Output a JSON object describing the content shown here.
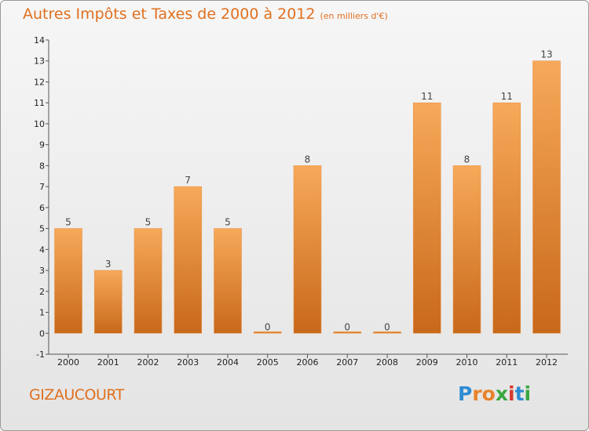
{
  "title": "Autres Impôts et Taxes de 2000 à 2012",
  "subtitle": "(en milliers d'€)",
  "commune": "GIZAUCOURT",
  "logo": {
    "text": "Proxiti",
    "letters": [
      "P",
      "r",
      "o",
      "x",
      "i",
      "t",
      "i"
    ],
    "colors": [
      "#2e8bd2",
      "#e8832a",
      "#e8832a",
      "#3aa640",
      "#d63a2a",
      "#2e8bd2",
      "#3aa640"
    ]
  },
  "chart_data": {
    "type": "bar",
    "categories": [
      "2000",
      "2001",
      "2002",
      "2003",
      "2004",
      "2005",
      "2006",
      "2007",
      "2008",
      "2009",
      "2010",
      "2011",
      "2012"
    ],
    "values": [
      5,
      3,
      5,
      7,
      5,
      0,
      8,
      0,
      0,
      11,
      8,
      11,
      13
    ],
    "ylim": [
      -1,
      14
    ],
    "yticks": [
      -1,
      0,
      1,
      2,
      3,
      4,
      5,
      6,
      7,
      8,
      9,
      10,
      11,
      12,
      13,
      14
    ],
    "bar_color": "#f0a050",
    "grid": false,
    "title": "Autres Impôts et Taxes de 2000 à 2012",
    "xlabel": "",
    "ylabel": ""
  }
}
